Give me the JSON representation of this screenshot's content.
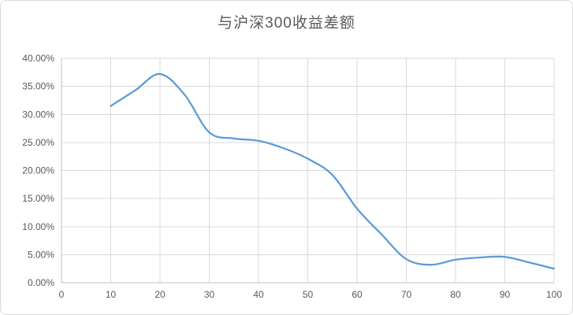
{
  "chart_data": {
    "type": "line",
    "title": "与沪深300收益差额",
    "smooth": true,
    "grid": true,
    "legend": false,
    "xlim": [
      0,
      100
    ],
    "ylim_percent": [
      0,
      40
    ],
    "x": [
      10,
      15,
      20,
      25,
      30,
      35,
      40,
      45,
      50,
      55,
      60,
      65,
      70,
      75,
      80,
      85,
      90,
      95,
      100
    ],
    "values": [
      31.5,
      34.3,
      37.2,
      33.5,
      26.8,
      25.7,
      25.3,
      24.0,
      22.1,
      19.2,
      13.2,
      8.6,
      4.2,
      3.2,
      4.1,
      4.5,
      4.6,
      3.6,
      2.5
    ],
    "x_tick_labels": [
      "0",
      "10",
      "20",
      "30",
      "40",
      "50",
      "60",
      "70",
      "80",
      "90",
      "100"
    ],
    "y_tick_labels_top_to_bottom": [
      "40.00%",
      "35.00%",
      "30.00%",
      "25.00%",
      "20.00%",
      "15.00%",
      "10.00%",
      "5.00%",
      "0.00%"
    ],
    "colors": {
      "line": "#5b9bd5",
      "gridline": "#d9d9d9",
      "axis_line": "#bfbfbf",
      "tick_label": "#595959",
      "title": "#595959",
      "frame_border": "#d9d9d9",
      "background": "#ffffff"
    }
  }
}
